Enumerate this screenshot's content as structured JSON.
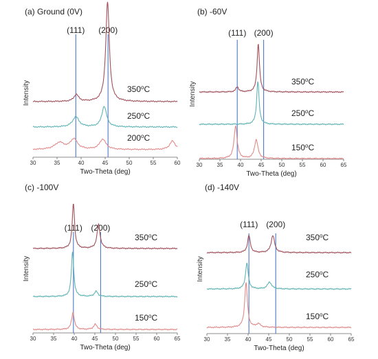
{
  "chart_data": [
    {
      "type": "line",
      "title": "(a) Ground (0V)",
      "xlabel": "Two-Theta (deg)",
      "ylabel": "Intensity",
      "xlim": [
        30,
        60
      ],
      "xticks": [
        30,
        35,
        40,
        45,
        50,
        55,
        60
      ],
      "grid": false,
      "peak_markers": [
        {
          "label": "(111)",
          "x": 38.9
        },
        {
          "label": "(200)",
          "x": 45.6
        }
      ],
      "series": [
        {
          "name": "350oC",
          "color": "#a0505a",
          "peaks": [
            {
              "x": 39.0,
              "height": 0.04,
              "width": 0.6
            },
            {
              "x": 45.5,
              "height": 0.58,
              "width": 0.45
            }
          ]
        },
        {
          "name": "250oC",
          "color": "#5fb3b3",
          "peaks": [
            {
              "x": 38.9,
              "height": 0.06,
              "width": 0.8
            },
            {
              "x": 44.8,
              "height": 0.12,
              "width": 0.6
            }
          ]
        },
        {
          "name": "200oC",
          "color": "#e08a8a",
          "peaks": [
            {
              "x": 35.5,
              "height": 0.04,
              "width": 1.2
            },
            {
              "x": 38.5,
              "height": 0.06,
              "width": 0.9
            },
            {
              "x": 44.5,
              "height": 0.06,
              "width": 0.8
            },
            {
              "x": 59.0,
              "height": 0.05,
              "width": 0.7
            }
          ]
        }
      ]
    },
    {
      "type": "line",
      "title": "(b) -60V",
      "xlabel": "Two-Theta (deg)",
      "ylabel": "Intensity",
      "xlim": [
        30,
        65
      ],
      "xticks": [
        30,
        35,
        40,
        45,
        50,
        55,
        60,
        65
      ],
      "grid": false,
      "peak_markers": [
        {
          "label": "(111)",
          "x": 39.2
        },
        {
          "label": "(200)",
          "x": 45.6
        }
      ],
      "series": [
        {
          "name": "350oC",
          "color": "#a0505a",
          "peaks": [
            {
              "x": 39.2,
              "height": 0.03,
              "width": 0.4
            },
            {
              "x": 44.3,
              "height": 0.28,
              "width": 0.35
            }
          ]
        },
        {
          "name": "250oC",
          "color": "#5fb3b3",
          "peaks": [
            {
              "x": 44.2,
              "height": 0.25,
              "width": 0.35
            }
          ]
        },
        {
          "name": "150oC",
          "color": "#e08a8a",
          "peaks": [
            {
              "x": 38.8,
              "height": 0.19,
              "width": 0.45
            },
            {
              "x": 43.8,
              "height": 0.11,
              "width": 0.5
            }
          ]
        }
      ]
    },
    {
      "type": "line",
      "title": "(c) -100V",
      "xlabel": "Two-Theta (deg)",
      "ylabel": "Intensity",
      "xlim": [
        30,
        65
      ],
      "xticks": [
        30,
        35,
        40,
        45,
        50,
        55,
        60,
        65
      ],
      "grid": false,
      "peak_markers": [
        {
          "label": "(111)",
          "x": 39.8
        },
        {
          "label": "(200)",
          "x": 46.4
        }
      ],
      "series": [
        {
          "name": "350oC",
          "color": "#a0505a",
          "peaks": [
            {
              "x": 39.8,
              "height": 0.26,
              "width": 0.35
            },
            {
              "x": 45.9,
              "height": 0.14,
              "width": 0.45
            }
          ]
        },
        {
          "name": "250oC",
          "color": "#5fb3b3",
          "peaks": [
            {
              "x": 39.6,
              "height": 0.26,
              "width": 0.35
            },
            {
              "x": 45.3,
              "height": 0.03,
              "width": 0.5
            }
          ]
        },
        {
          "name": "150oC",
          "color": "#e08a8a",
          "peaks": [
            {
              "x": 39.7,
              "height": 0.1,
              "width": 0.4
            },
            {
              "x": 45.1,
              "height": 0.03,
              "width": 0.5
            }
          ]
        }
      ]
    },
    {
      "type": "line",
      "title": "(d) -140V",
      "xlabel": "Two-Theta (deg)",
      "ylabel": "Intensity",
      "xlim": [
        30,
        65
      ],
      "xticks": [
        30,
        35,
        40,
        45,
        50,
        55,
        60,
        65
      ],
      "grid": false,
      "peak_markers": [
        {
          "label": "(111)",
          "x": 40.2
        },
        {
          "label": "(200)",
          "x": 46.7
        }
      ],
      "series": [
        {
          "name": "350oC",
          "color": "#a0505a",
          "peaks": [
            {
              "x": 40.2,
              "height": 0.1,
              "width": 0.4
            },
            {
              "x": 46.0,
              "height": 0.1,
              "width": 0.5
            }
          ]
        },
        {
          "name": "250oC",
          "color": "#5fb3b3",
          "peaks": [
            {
              "x": 39.7,
              "height": 0.15,
              "width": 0.4
            },
            {
              "x": 45.2,
              "height": 0.04,
              "width": 0.6
            }
          ]
        },
        {
          "name": "150oC",
          "color": "#e08a8a",
          "peaks": [
            {
              "x": 39.5,
              "height": 0.26,
              "width": 0.4
            },
            {
              "x": 42.5,
              "height": 0.02,
              "width": 0.6
            }
          ]
        }
      ]
    }
  ]
}
